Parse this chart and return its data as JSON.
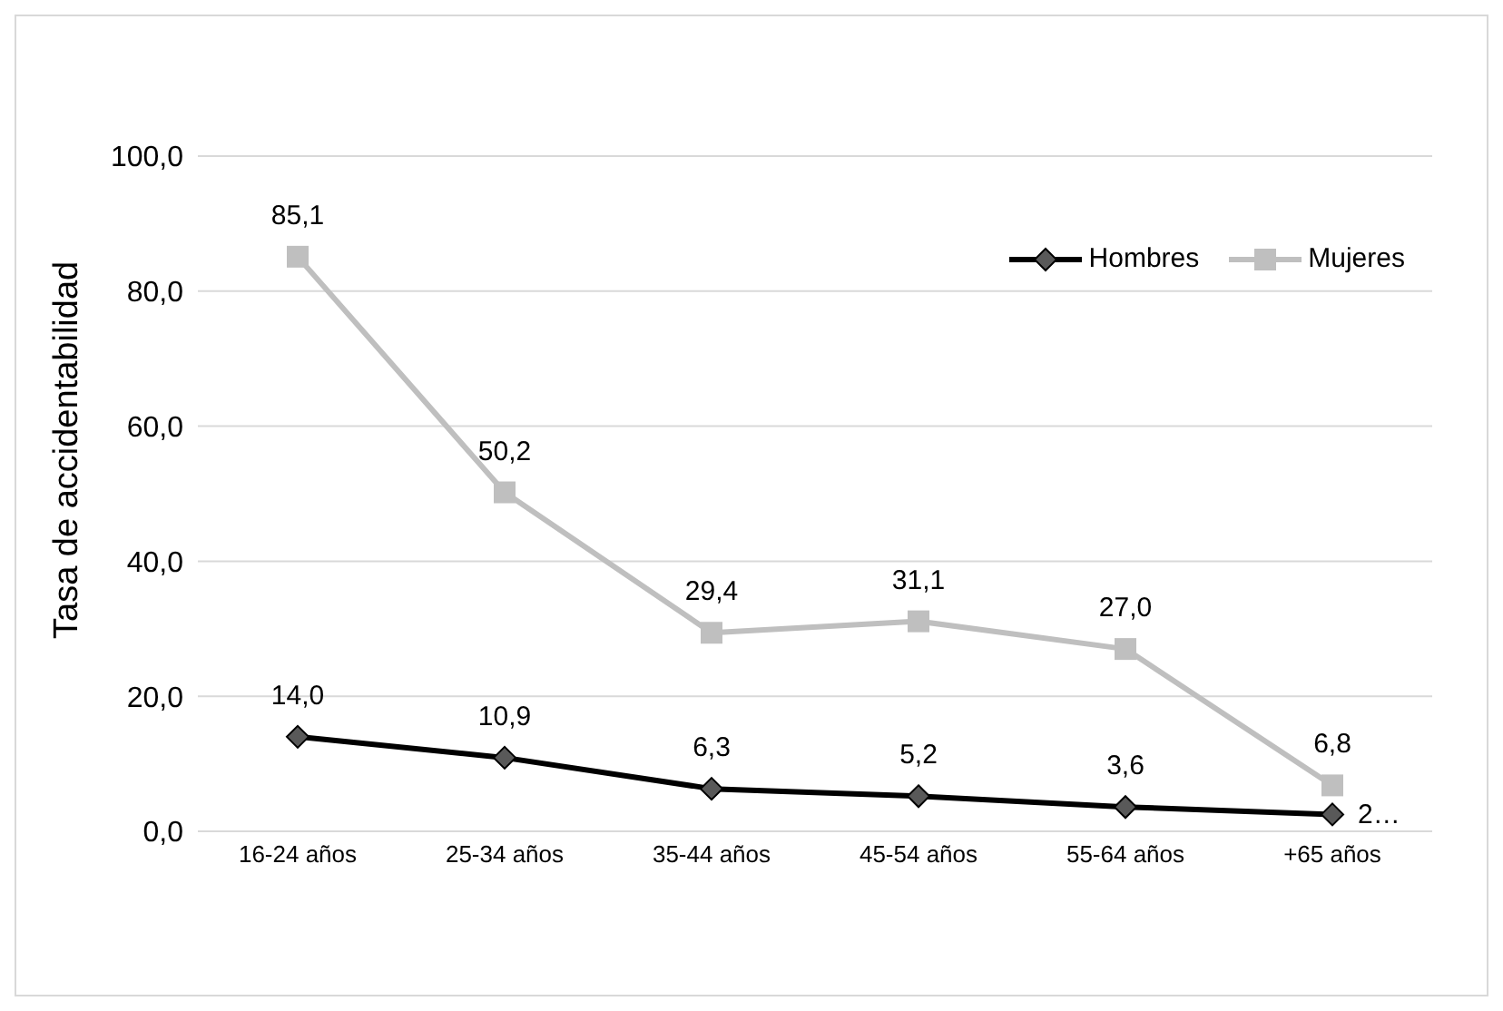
{
  "chart_data": {
    "type": "line",
    "ylabel": "Tasa de accidentabilidad",
    "categories": [
      "16-24 años",
      "25-34 años",
      "35-44 años",
      "45-54 años",
      "55-64 años",
      "+65 años"
    ],
    "series": [
      {
        "name": "Hombres",
        "color": "#000000",
        "marker": "diamond",
        "values": [
          14.0,
          10.9,
          6.3,
          5.2,
          3.6,
          2.5
        ],
        "value_labels": [
          "14,0",
          "10,9",
          "6,3",
          "5,2",
          "3,6",
          "2…"
        ]
      },
      {
        "name": "Mujeres",
        "color": "#bfbfbf",
        "marker": "square",
        "values": [
          85.1,
          50.2,
          29.4,
          31.1,
          27.0,
          6.8
        ],
        "value_labels": [
          "85,1",
          "50,2",
          "29,4",
          "31,1",
          "27,0",
          "6,8"
        ]
      }
    ],
    "ylim": [
      0,
      100
    ],
    "yticks": [
      {
        "value": 0,
        "label": "0,0"
      },
      {
        "value": 20,
        "label": "20,0"
      },
      {
        "value": 40,
        "label": "40,0"
      },
      {
        "value": 60,
        "label": "60,0"
      },
      {
        "value": 80,
        "label": "80,0"
      },
      {
        "value": 100,
        "label": "100,0"
      }
    ],
    "grid": "y",
    "legend": "top right"
  }
}
